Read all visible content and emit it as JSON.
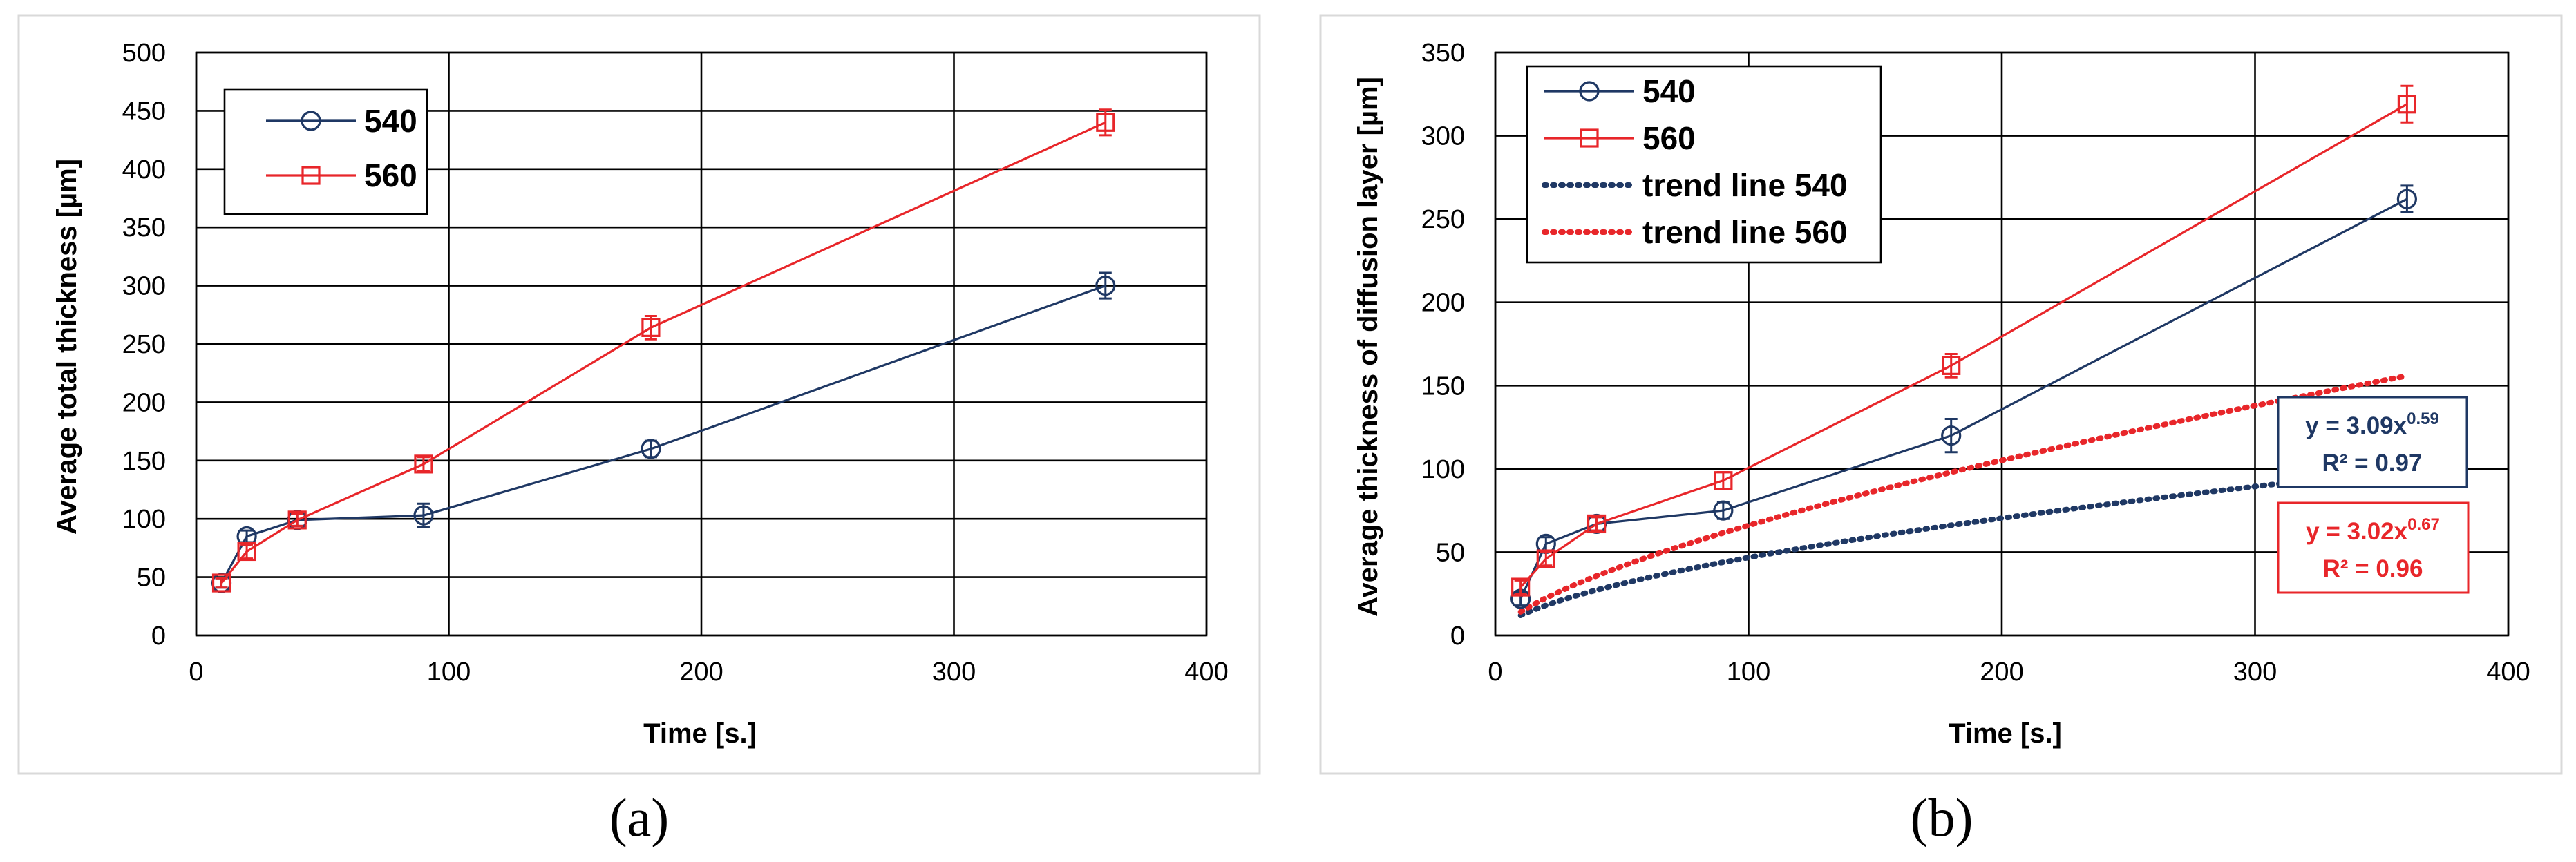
{
  "colors": {
    "s540": "#1f3864",
    "s560": "#e8262a"
  },
  "chart_data": [
    {
      "type": "line",
      "panel": "(a)",
      "xlabel": "Time [s.]",
      "ylabel": "Average total thickness [µm]",
      "xlim": [
        0,
        400
      ],
      "ylim": [
        0,
        500
      ],
      "xticks": [
        0,
        100,
        200,
        300,
        400
      ],
      "yticks": [
        0,
        50,
        100,
        150,
        200,
        250,
        300,
        350,
        400,
        450,
        500
      ],
      "grid": true,
      "legend_position": "top-left",
      "series": [
        {
          "name": "540",
          "marker": "circle",
          "x": [
            10,
            20,
            40,
            90,
            180,
            360
          ],
          "y": [
            45,
            85,
            99,
            103,
            160,
            300
          ],
          "err": [
            4,
            5,
            5,
            10,
            7,
            11
          ]
        },
        {
          "name": "560",
          "marker": "square",
          "x": [
            10,
            20,
            40,
            90,
            180,
            360
          ],
          "y": [
            45,
            72,
            99,
            147,
            264,
            440
          ],
          "err": [
            4,
            6,
            5,
            6,
            10,
            11
          ]
        }
      ]
    },
    {
      "type": "line",
      "panel": "(b)",
      "xlabel": "Time [s.]",
      "ylabel": "Average thickness of diffusion layer  [µm]",
      "xlim": [
        0,
        400
      ],
      "ylim": [
        0,
        350
      ],
      "xticks": [
        0,
        100,
        200,
        300,
        400
      ],
      "yticks": [
        0,
        50,
        100,
        150,
        200,
        250,
        300,
        350
      ],
      "grid": true,
      "legend_position": "top-left",
      "series": [
        {
          "name": "540",
          "marker": "circle",
          "x": [
            10,
            20,
            40,
            90,
            180,
            360
          ],
          "y": [
            22,
            55,
            67,
            75,
            120,
            262
          ],
          "err": [
            4,
            4,
            4,
            5,
            10,
            8
          ]
        },
        {
          "name": "560",
          "marker": "square",
          "x": [
            10,
            20,
            40,
            90,
            180,
            360
          ],
          "y": [
            29,
            46,
            67,
            93,
            162,
            319
          ],
          "err": [
            4,
            4,
            4,
            5,
            7,
            11
          ]
        }
      ],
      "trendlines": [
        {
          "name": "trend line 540",
          "a": 3.09,
          "b": 0.59,
          "x_range": [
            10,
            360
          ]
        },
        {
          "name": "trend line 560",
          "a": 3.02,
          "b": 0.67,
          "x_range": [
            10,
            360
          ]
        }
      ],
      "equations": [
        {
          "series": "540",
          "prefix": "y = 3.09x",
          "exponent": "0.59",
          "r2": "R² = 0.97"
        },
        {
          "series": "560",
          "prefix": "y = 3.02x",
          "exponent": "0.67",
          "r2": "R² = 0.96"
        }
      ]
    }
  ],
  "legend_a": [
    {
      "label": "540",
      "marker": "circle"
    },
    {
      "label": "560",
      "marker": "square"
    }
  ],
  "legend_b": [
    {
      "label": "540",
      "marker": "circle"
    },
    {
      "label": "560",
      "marker": "square"
    },
    {
      "label": "trend line 540",
      "marker": "dotted"
    },
    {
      "label": "trend line 560",
      "marker": "dotted"
    }
  ],
  "captions": {
    "a": "(a)",
    "b": "(b)"
  }
}
